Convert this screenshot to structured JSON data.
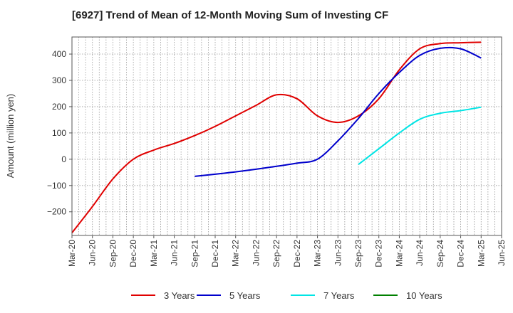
{
  "chart_data": {
    "type": "line",
    "title": "[6927]  Trend of Mean of 12-Month Moving Sum of Investing CF",
    "xlabel": "",
    "ylabel": "Amount (million yen)",
    "ylim": [
      -290,
      465
    ],
    "yticks": [
      -200,
      -100,
      0,
      100,
      200,
      300,
      400
    ],
    "categories": [
      "Mar-20",
      "Jun-20",
      "Sep-20",
      "Dec-20",
      "Mar-21",
      "Jun-21",
      "Sep-21",
      "Dec-21",
      "Mar-22",
      "Jun-22",
      "Sep-22",
      "Dec-22",
      "Mar-23",
      "Jun-23",
      "Sep-23",
      "Dec-23",
      "Mar-24",
      "Jun-24",
      "Sep-24",
      "Dec-24",
      "Mar-25",
      "Jun-25"
    ],
    "grid": true,
    "legend_position": "bottom",
    "series": [
      {
        "name": "3 Years",
        "color": "#e00000",
        "values": [
          -280,
          -180,
          -75,
          0,
          35,
          60,
          90,
          125,
          165,
          205,
          245,
          230,
          165,
          140,
          165,
          230,
          340,
          420,
          440,
          443,
          445,
          null
        ]
      },
      {
        "name": "5 Years",
        "color": "#0000cc",
        "values": [
          null,
          null,
          null,
          null,
          null,
          null,
          -65,
          -57,
          -48,
          -38,
          -27,
          -15,
          0,
          70,
          155,
          250,
          330,
          395,
          422,
          420,
          385,
          null
        ]
      },
      {
        "name": "7 Years",
        "color": "#00e5e5",
        "values": [
          null,
          null,
          null,
          null,
          null,
          null,
          null,
          null,
          null,
          null,
          null,
          null,
          null,
          null,
          -20,
          40,
          100,
          152,
          175,
          185,
          198,
          null
        ]
      },
      {
        "name": "10 Years",
        "color": "#008000",
        "values": [
          null,
          null,
          null,
          null,
          null,
          null,
          null,
          null,
          null,
          null,
          null,
          null,
          null,
          null,
          null,
          null,
          null,
          null,
          null,
          null,
          null,
          null
        ]
      }
    ]
  }
}
